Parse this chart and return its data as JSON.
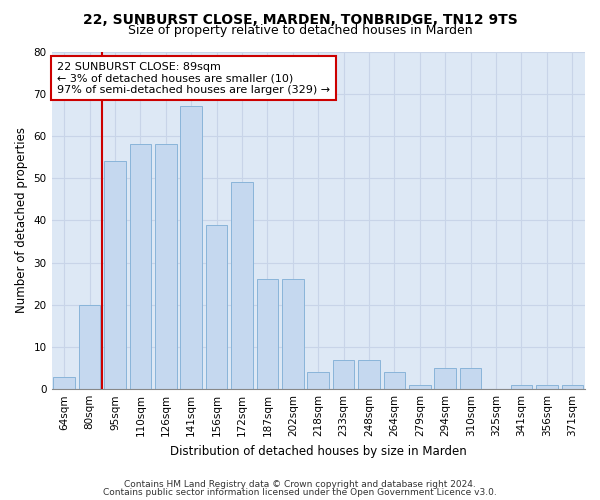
{
  "title1": "22, SUNBURST CLOSE, MARDEN, TONBRIDGE, TN12 9TS",
  "title2": "Size of property relative to detached houses in Marden",
  "xlabel": "Distribution of detached houses by size in Marden",
  "ylabel": "Number of detached properties",
  "categories": [
    "64sqm",
    "80sqm",
    "95sqm",
    "110sqm",
    "126sqm",
    "141sqm",
    "156sqm",
    "172sqm",
    "187sqm",
    "202sqm",
    "218sqm",
    "233sqm",
    "248sqm",
    "264sqm",
    "279sqm",
    "294sqm",
    "310sqm",
    "325sqm",
    "341sqm",
    "356sqm",
    "371sqm"
  ],
  "values": [
    3,
    20,
    54,
    58,
    58,
    67,
    39,
    49,
    26,
    26,
    4,
    7,
    7,
    4,
    1,
    5,
    5,
    0,
    1,
    1,
    1
  ],
  "bar_color": "#c5d8ef",
  "bar_edge_color": "#89b4d9",
  "vline_color": "#cc0000",
  "vline_x": 1.5,
  "annotation_line1": "22 SUNBURST CLOSE: 89sqm",
  "annotation_line2": "← 3% of detached houses are smaller (10)",
  "annotation_line3": "97% of semi-detached houses are larger (329) →",
  "annotation_box_color": "white",
  "annotation_box_edge_color": "#cc0000",
  "ylim": [
    0,
    80
  ],
  "yticks": [
    0,
    10,
    20,
    30,
    40,
    50,
    60,
    70,
    80
  ],
  "grid_color": "#c8d4e8",
  "bg_color": "#dde8f5",
  "footer1": "Contains HM Land Registry data © Crown copyright and database right 2024.",
  "footer2": "Contains public sector information licensed under the Open Government Licence v3.0.",
  "title1_fontsize": 10,
  "title2_fontsize": 9,
  "tick_fontsize": 7.5,
  "ylabel_fontsize": 8.5,
  "xlabel_fontsize": 8.5,
  "footer_fontsize": 6.5,
  "annotation_fontsize": 8
}
